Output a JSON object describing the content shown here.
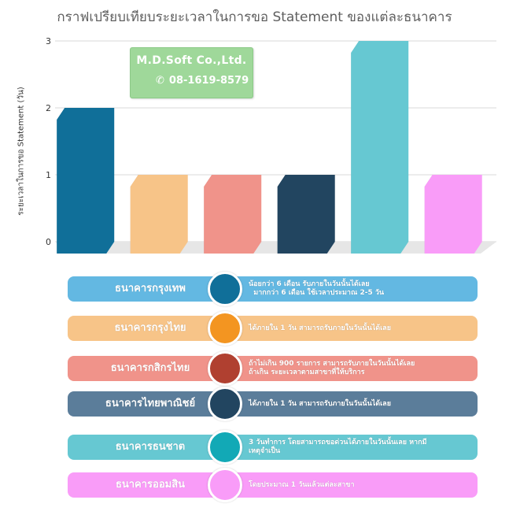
{
  "chart_data": {
    "type": "bar",
    "title": "กราฟเปรียบเทียบระยะเวลาในการขอ Statement  ของแต่ละธนาคาร",
    "ylabel": "ระยะเวลาในการขอ Statement (วัน)",
    "xlabel": "",
    "ylim": [
      0,
      3
    ],
    "yticks": [
      0,
      1,
      2,
      3
    ],
    "grid": true,
    "categories": [
      "ธนาคารกรุงเทพ",
      "ธนาคารกรุงไทย",
      "ธนาคารกสิกรไทย",
      "ธนาคารไทยพาณิชย์",
      "ธนาคารธนชาต",
      "ธนาคารออมสิน"
    ],
    "values": [
      2,
      1,
      1,
      1,
      3,
      1
    ],
    "colors": [
      "#106f99",
      "#f7c488",
      "#f0938a",
      "#224560",
      "#66c8d2",
      "#f99cf8"
    ]
  },
  "watermark": {
    "company": "M.D.Soft Co.,Ltd.",
    "phone": "08-1619-8579",
    "icon": "phone-icon"
  },
  "banks": [
    {
      "name": "ธนาคารกรุงเทพ",
      "desc": [
        "น้อยกว่า 6 เดือน รับภายในวันนั้นได้เลย",
        "  มากกว่า 6 เดือน ใช้เวลาประมาณ 2-5 วัน"
      ],
      "row_color": "#63b8e2",
      "circle_color": "#106f99"
    },
    {
      "name": "ธนาคารกรุงไทย",
      "desc": [
        "ได้ภายใน 1 วัน สามารถรับภายในวันนั้นได้เลย",
        ""
      ],
      "row_color": "#f7c488",
      "circle_color": "#f39521"
    },
    {
      "name": "ธนาคารกสิกรไทย",
      "desc": [
        "ถ้าไม่เกิน 900 รายการ สามารถรับภายในวันนั้นได้เลย",
        "ถ้าเกิน ระยะเวลาตามสาขาที่ให้บริการ"
      ],
      "row_color": "#f0938a",
      "circle_color": "#b04030"
    },
    {
      "name": "ธนาคารไทยพาณิชย์",
      "desc": [
        "ได้ภายใน 1 วัน สามารถรับภายในวันนั้นได้เลย",
        ""
      ],
      "row_color": "#5b7d9a",
      "circle_color": "#224560"
    },
    {
      "name": "ธนาคารธนชาต",
      "desc": [
        "3 วันทำการ โดยสามารถขอด่วนได้ภายในวันนั้นเลย หากมี",
        "เหตุจำเป็น"
      ],
      "row_color": "#66c8d2",
      "circle_color": "#12a9b6"
    },
    {
      "name": "ธนาคารออมสิน",
      "desc": [
        "โดยประมาณ 1 วันแล้วแต่ละสาขา",
        ""
      ],
      "row_color": "#f99cf8",
      "circle_color": "#f99cf8"
    }
  ]
}
